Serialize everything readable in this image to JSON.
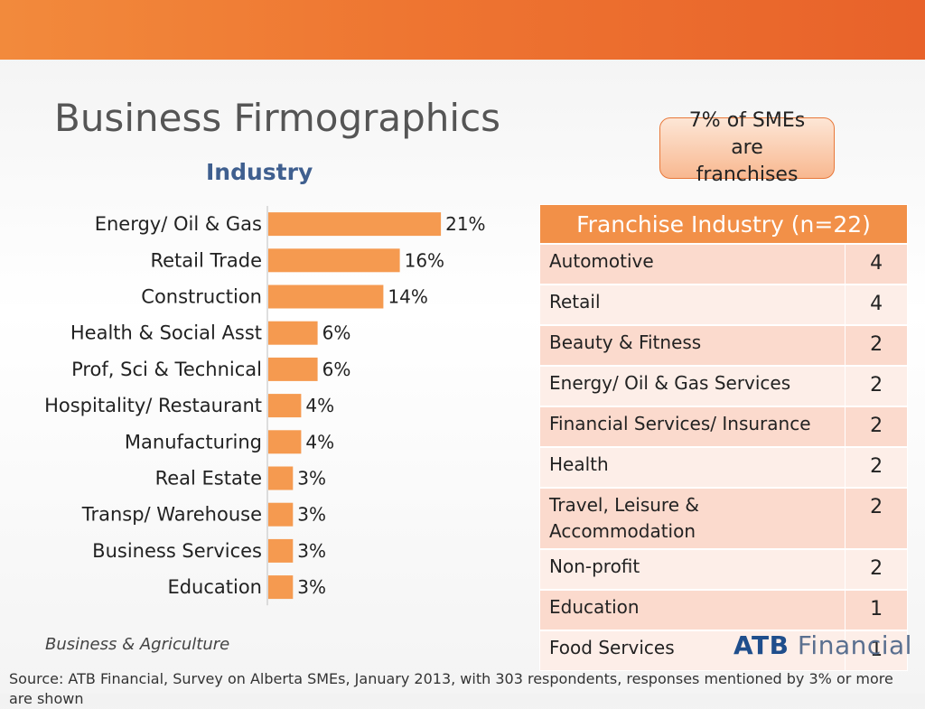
{
  "page": {
    "title": "Business Firmographics",
    "footer_label": "Business & Agriculture",
    "source": "Source: ATB Financial, Survey on Alberta SMEs, January 2013, with 303 respondents, responses mentioned by 3% or more are shown",
    "logo": {
      "part1": "ATB",
      "part2": "Financial"
    },
    "colors": {
      "banner": "#ee7531",
      "bar": "#f59a50",
      "chart_title": "#3f5f8f",
      "table_header": "#f29048"
    }
  },
  "callout": {
    "text": "7% of SMEs are franchises"
  },
  "chart_data": {
    "type": "bar",
    "orientation": "horizontal",
    "title": "Industry",
    "categories": [
      "Energy/ Oil & Gas",
      "Retail Trade",
      "Construction",
      "Health & Social Asst",
      "Prof, Sci & Technical",
      "Hospitality/ Restaurant",
      "Manufacturing",
      "Real Estate",
      "Transp/ Warehouse",
      "Business Services",
      "Education"
    ],
    "values": [
      21,
      16,
      14,
      6,
      6,
      4,
      4,
      3,
      3,
      3,
      3
    ],
    "data_labels": [
      "21%",
      "16%",
      "14%",
      "6%",
      "6%",
      "4%",
      "4%",
      "3%",
      "3%",
      "3%",
      "3%"
    ],
    "xlim": [
      0,
      25
    ],
    "grid": false,
    "legend": "none"
  },
  "franchise_table": {
    "title": "Franchise Industry (n=22)",
    "rows": [
      {
        "industry": "Automotive",
        "count": "4"
      },
      {
        "industry": "Retail",
        "count": "4"
      },
      {
        "industry": "Beauty & Fitness",
        "count": "2"
      },
      {
        "industry": "Energy/ Oil & Gas Services",
        "count": "2"
      },
      {
        "industry": "Financial Services/ Insurance",
        "count": "2"
      },
      {
        "industry": "Health",
        "count": "2"
      },
      {
        "industry": "Travel, Leisure & Accommodation",
        "count": "2"
      },
      {
        "industry": "Non-profit",
        "count": "2"
      },
      {
        "industry": "Education",
        "count": "1"
      },
      {
        "industry": "Food Services",
        "count": "1"
      }
    ]
  }
}
